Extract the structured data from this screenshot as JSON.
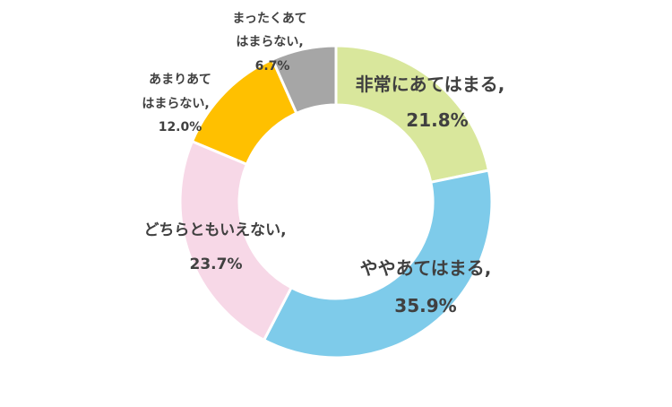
{
  "chart_data": {
    "type": "pie",
    "variant": "donut",
    "title": "",
    "legend": "none",
    "start": "top",
    "direction": "clockwise",
    "slices": [
      {
        "label": "非常にあてはまる,",
        "value_text": "21.8%",
        "value": 21.8,
        "color": "#d9e79c"
      },
      {
        "label": "ややあてはまる,",
        "value_text": "35.9%",
        "value": 35.9,
        "color": "#7ecbea"
      },
      {
        "label": "どちらともいえない,",
        "value_text": "23.7%",
        "value": 23.7,
        "color": "#f7d8e7"
      },
      {
        "label_lines": [
          "あまりあて",
          "はまらない,"
        ],
        "value_text": "12.0%",
        "value": 12.0,
        "color": "#ffc000"
      },
      {
        "label_lines": [
          "まったくあて",
          "はまらない,"
        ],
        "value_text": "6.7%",
        "value": 6.7,
        "color": "#a6a6a6"
      }
    ]
  }
}
